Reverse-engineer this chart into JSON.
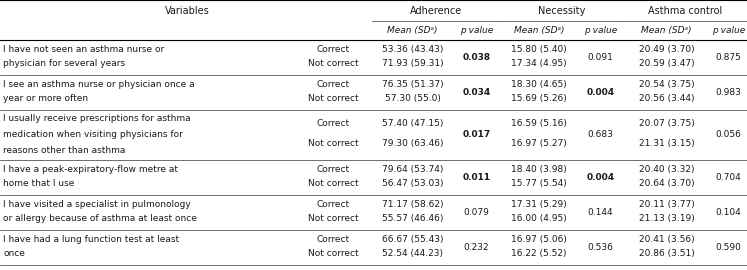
{
  "rows": [
    {
      "variable": [
        "I have not seen an asthma nurse or",
        "physician for several years"
      ],
      "correct_label": [
        "Correct",
        "Not correct"
      ],
      "adherence": [
        "53.36 (43.43)",
        "71.93 (59.31)"
      ],
      "adherence_p": "0.038",
      "adherence_p_bold": true,
      "necessity": [
        "15.80 (5.40)",
        "17.34 (4.95)"
      ],
      "necessity_p": "0.091",
      "necessity_p_bold": false,
      "asthma": [
        "20.49 (3.70)",
        "20.59 (3.47)"
      ],
      "asthma_p": "0.875",
      "asthma_p_bold": false,
      "nlines": 2
    },
    {
      "variable": [
        "I see an asthma nurse or physician once a",
        "year or more often"
      ],
      "correct_label": [
        "Correct",
        "Not correct"
      ],
      "adherence": [
        "76.35 (51.37)",
        "57.30 (55.0)"
      ],
      "adherence_p": "0.034",
      "adherence_p_bold": true,
      "necessity": [
        "18.30 (4.65)",
        "15.69 (5.26)"
      ],
      "necessity_p": "0.004",
      "necessity_p_bold": true,
      "asthma": [
        "20.54 (3.75)",
        "20.56 (3.44)"
      ],
      "asthma_p": "0.983",
      "asthma_p_bold": false,
      "nlines": 2
    },
    {
      "variable": [
        "I usually receive prescriptions for asthma",
        "medication when visiting physicians for",
        "reasons other than asthma"
      ],
      "correct_label": [
        "Correct",
        "Not correct"
      ],
      "adherence": [
        "57.40 (47.15)",
        "79.30 (63.46)"
      ],
      "adherence_p": "0.017",
      "adherence_p_bold": true,
      "necessity": [
        "16.59 (5.16)",
        "16.97 (5.27)"
      ],
      "necessity_p": "0.683",
      "necessity_p_bold": false,
      "asthma": [
        "20.07 (3.75)",
        "21.31 (3.15)"
      ],
      "asthma_p": "0.056",
      "asthma_p_bold": false,
      "nlines": 3
    },
    {
      "variable": [
        "I have a peak-expiratory-flow metre at",
        "home that I use"
      ],
      "correct_label": [
        "Correct",
        "Not correct"
      ],
      "adherence": [
        "79.64 (53.74)",
        "56.47 (53.03)"
      ],
      "adherence_p": "0.011",
      "adherence_p_bold": true,
      "necessity": [
        "18.40 (3.98)",
        "15.77 (5.54)"
      ],
      "necessity_p": "0.004",
      "necessity_p_bold": true,
      "asthma": [
        "20.40 (3.32)",
        "20.64 (3.70)"
      ],
      "asthma_p": "0.704",
      "asthma_p_bold": false,
      "nlines": 2
    },
    {
      "variable": [
        "I have visited a specialist in pulmonology",
        "or allergy because of asthma at least once"
      ],
      "correct_label": [
        "Correct",
        "Not correct"
      ],
      "adherence": [
        "71.17 (58.62)",
        "55.57 (46.46)"
      ],
      "adherence_p": "0.079",
      "adherence_p_bold": false,
      "necessity": [
        "17.31 (5.29)",
        "16.00 (4.95)"
      ],
      "necessity_p": "0.144",
      "necessity_p_bold": false,
      "asthma": [
        "20.11 (3.77)",
        "21.13 (3.19)"
      ],
      "asthma_p": "0.104",
      "asthma_p_bold": false,
      "nlines": 2
    },
    {
      "variable": [
        "I have had a lung function test at least",
        "once"
      ],
      "correct_label": [
        "Correct",
        "Not correct"
      ],
      "adherence": [
        "66.67 (55.43)",
        "52.54 (44.23)"
      ],
      "adherence_p": "0.232",
      "adherence_p_bold": false,
      "necessity": [
        "16.97 (5.06)",
        "16.22 (5.52)"
      ],
      "necessity_p": "0.536",
      "necessity_p_bold": false,
      "asthma": [
        "20.41 (3.56)",
        "20.86 (3.51)"
      ],
      "asthma_p": "0.590",
      "asthma_p_bold": false,
      "nlines": 2
    }
  ],
  "font_size": 6.5,
  "header_font_size": 7.0,
  "text_color": "#1a1a1a"
}
